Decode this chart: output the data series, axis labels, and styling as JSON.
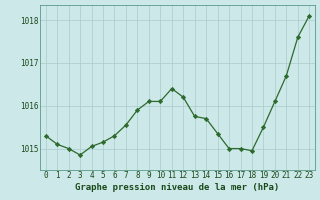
{
  "x": [
    0,
    1,
    2,
    3,
    4,
    5,
    6,
    7,
    8,
    9,
    10,
    11,
    12,
    13,
    14,
    15,
    16,
    17,
    18,
    19,
    20,
    21,
    22,
    23
  ],
  "y": [
    1015.3,
    1015.1,
    1015.0,
    1014.85,
    1015.05,
    1015.15,
    1015.3,
    1015.55,
    1015.9,
    1016.1,
    1016.1,
    1016.4,
    1016.2,
    1015.75,
    1015.7,
    1015.35,
    1015.0,
    1015.0,
    1014.95,
    1015.5,
    1016.1,
    1016.7,
    1017.6,
    1018.1
  ],
  "line_color": "#2d6a2d",
  "marker": "D",
  "marker_size": 2.2,
  "background_color": "#cce8e8",
  "grid_color_v": "#aacccc",
  "grid_color_h": "#aacccc",
  "ylabel_ticks": [
    1015,
    1016,
    1017,
    1018
  ],
  "xlabel_ticks": [
    0,
    1,
    2,
    3,
    4,
    5,
    6,
    7,
    8,
    9,
    10,
    11,
    12,
    13,
    14,
    15,
    16,
    17,
    18,
    19,
    20,
    21,
    22,
    23
  ],
  "xlabel_labels": [
    "0",
    "1",
    "2",
    "3",
    "4",
    "5",
    "6",
    "7",
    "8",
    "9",
    "10",
    "11",
    "12",
    "13",
    "14",
    "15",
    "16",
    "17",
    "18",
    "19",
    "20",
    "21",
    "22",
    "23"
  ],
  "xlabel": "Graphe pression niveau de la mer (hPa)",
  "ylim": [
    1014.5,
    1018.35
  ],
  "xlim": [
    -0.5,
    23.5
  ],
  "font_color": "#1a4a1a",
  "tick_fontsize": 5.5,
  "xlabel_fontsize": 6.5
}
